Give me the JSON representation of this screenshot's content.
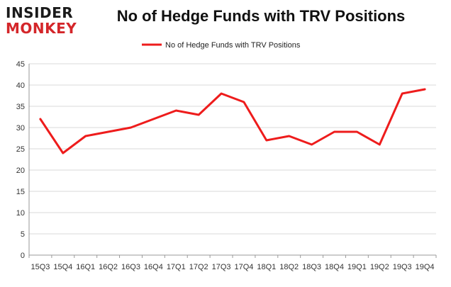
{
  "logo": {
    "line1": "INSIDER",
    "line2": "MONKEY"
  },
  "colors": {
    "series": "#ee1c1c",
    "logo_red": "#d4262a",
    "grid": "#d9d9d9"
  },
  "chart_data": {
    "type": "line",
    "title": "No of Hedge Funds with TRV Positions",
    "xlabel": "",
    "ylabel": "",
    "ylim": [
      0,
      45
    ],
    "yticks": [
      0,
      5,
      10,
      15,
      20,
      25,
      30,
      35,
      40,
      45
    ],
    "grid": "horizontal",
    "legend": "top-center",
    "categories": [
      "15Q3",
      "15Q4",
      "16Q1",
      "16Q2",
      "16Q3",
      "16Q4",
      "17Q1",
      "17Q2",
      "17Q3",
      "17Q4",
      "18Q1",
      "18Q2",
      "18Q3",
      "18Q4",
      "19Q1",
      "19Q2",
      "19Q3",
      "19Q4"
    ],
    "series": [
      {
        "name": "No of Hedge Funds with TRV Positions",
        "values": [
          32,
          24,
          28,
          29,
          30,
          32,
          34,
          33,
          38,
          36,
          27,
          28,
          26,
          29,
          29,
          26,
          38,
          39
        ]
      }
    ]
  }
}
